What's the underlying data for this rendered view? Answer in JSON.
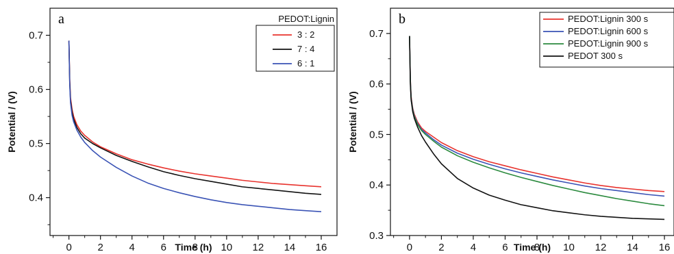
{
  "chart_data": [
    {
      "type": "line",
      "panel_label": "a",
      "xlabel": "Time (h)",
      "ylabel": "Potential / (V)",
      "xlim": [
        -1.2,
        17
      ],
      "ylim": [
        0.33,
        0.75
      ],
      "x_ticks": [
        "0",
        "2",
        "4",
        "6",
        "8",
        "10",
        "12",
        "14",
        "16"
      ],
      "y_ticks": [
        "0.4",
        "0.5",
        "0.6",
        "0.7"
      ],
      "legend_title": "PEDOT:Lignin",
      "legend_position": "top-right",
      "grid": false,
      "series": [
        {
          "name": "3 : 2",
          "color": "#e8322d",
          "points": [
            [
              0,
              0.69
            ],
            [
              0.05,
              0.62
            ],
            [
              0.1,
              0.585
            ],
            [
              0.2,
              0.563
            ],
            [
              0.3,
              0.55
            ],
            [
              0.5,
              0.535
            ],
            [
              0.75,
              0.523
            ],
            [
              1,
              0.515
            ],
            [
              1.5,
              0.503
            ],
            [
              2,
              0.494
            ],
            [
              3,
              0.481
            ],
            [
              4,
              0.47
            ],
            [
              5,
              0.462
            ],
            [
              6,
              0.455
            ],
            [
              7,
              0.449
            ],
            [
              8,
              0.444
            ],
            [
              9,
              0.44
            ],
            [
              10,
              0.436
            ],
            [
              11,
              0.432
            ],
            [
              12,
              0.429
            ],
            [
              13,
              0.426
            ],
            [
              14,
              0.424
            ],
            [
              15,
              0.422
            ],
            [
              16,
              0.42
            ]
          ]
        },
        {
          "name": "7 : 4",
          "color": "#111111",
          "points": [
            [
              0,
              0.69
            ],
            [
              0.05,
              0.615
            ],
            [
              0.1,
              0.58
            ],
            [
              0.2,
              0.558
            ],
            [
              0.3,
              0.545
            ],
            [
              0.5,
              0.53
            ],
            [
              0.75,
              0.518
            ],
            [
              1,
              0.51
            ],
            [
              1.5,
              0.5
            ],
            [
              2,
              0.492
            ],
            [
              3,
              0.478
            ],
            [
              4,
              0.467
            ],
            [
              5,
              0.457
            ],
            [
              6,
              0.448
            ],
            [
              7,
              0.441
            ],
            [
              8,
              0.435
            ],
            [
              9,
              0.43
            ],
            [
              10,
              0.425
            ],
            [
              11,
              0.42
            ],
            [
              12,
              0.417
            ],
            [
              13,
              0.414
            ],
            [
              14,
              0.411
            ],
            [
              15,
              0.408
            ],
            [
              16,
              0.406
            ]
          ]
        },
        {
          "name": "6 : 1",
          "color": "#3a53b5",
          "points": [
            [
              0,
              0.69
            ],
            [
              0.05,
              0.61
            ],
            [
              0.1,
              0.575
            ],
            [
              0.2,
              0.552
            ],
            [
              0.3,
              0.54
            ],
            [
              0.5,
              0.525
            ],
            [
              0.75,
              0.512
            ],
            [
              1,
              0.502
            ],
            [
              1.5,
              0.487
            ],
            [
              2,
              0.475
            ],
            [
              3,
              0.456
            ],
            [
              4,
              0.44
            ],
            [
              5,
              0.427
            ],
            [
              6,
              0.417
            ],
            [
              7,
              0.409
            ],
            [
              8,
              0.402
            ],
            [
              9,
              0.396
            ],
            [
              10,
              0.391
            ],
            [
              11,
              0.387
            ],
            [
              12,
              0.384
            ],
            [
              13,
              0.381
            ],
            [
              14,
              0.378
            ],
            [
              15,
              0.376
            ],
            [
              16,
              0.374
            ]
          ]
        }
      ]
    },
    {
      "type": "line",
      "panel_label": "b",
      "xlabel": "Time (h)",
      "ylabel": "Potential / (V)",
      "xlim": [
        -1.2,
        16.6
      ],
      "ylim": [
        0.3,
        0.75
      ],
      "x_ticks": [
        "0",
        "2",
        "4",
        "6",
        "8",
        "10",
        "12",
        "14",
        "16"
      ],
      "y_ticks": [
        "0.3",
        "0.4",
        "0.5",
        "0.6",
        "0.7"
      ],
      "legend_title": "",
      "legend_position": "top-right",
      "grid": false,
      "series": [
        {
          "name": "PEDOT:Lignin 300 s",
          "color": "#e8322d",
          "points": [
            [
              0,
              0.695
            ],
            [
              0.05,
              0.61
            ],
            [
              0.1,
              0.575
            ],
            [
              0.2,
              0.552
            ],
            [
              0.3,
              0.54
            ],
            [
              0.5,
              0.525
            ],
            [
              0.75,
              0.513
            ],
            [
              1,
              0.506
            ],
            [
              1.5,
              0.495
            ],
            [
              2,
              0.484
            ],
            [
              3,
              0.468
            ],
            [
              4,
              0.456
            ],
            [
              5,
              0.446
            ],
            [
              6,
              0.438
            ],
            [
              7,
              0.43
            ],
            [
              8,
              0.423
            ],
            [
              9,
              0.416
            ],
            [
              10,
              0.41
            ],
            [
              11,
              0.404
            ],
            [
              12,
              0.399
            ],
            [
              13,
              0.395
            ],
            [
              14,
              0.392
            ],
            [
              15,
              0.389
            ],
            [
              16,
              0.387
            ]
          ]
        },
        {
          "name": "PEDOT:Lignin 600 s",
          "color": "#3a53b5",
          "points": [
            [
              0,
              0.695
            ],
            [
              0.05,
              0.608
            ],
            [
              0.1,
              0.572
            ],
            [
              0.2,
              0.55
            ],
            [
              0.3,
              0.537
            ],
            [
              0.5,
              0.522
            ],
            [
              0.75,
              0.51
            ],
            [
              1,
              0.503
            ],
            [
              1.5,
              0.49
            ],
            [
              2,
              0.479
            ],
            [
              3,
              0.463
            ],
            [
              4,
              0.451
            ],
            [
              5,
              0.441
            ],
            [
              6,
              0.432
            ],
            [
              7,
              0.424
            ],
            [
              8,
              0.417
            ],
            [
              9,
              0.41
            ],
            [
              10,
              0.404
            ],
            [
              11,
              0.398
            ],
            [
              12,
              0.393
            ],
            [
              13,
              0.389
            ],
            [
              14,
              0.385
            ],
            [
              15,
              0.381
            ],
            [
              16,
              0.378
            ]
          ]
        },
        {
          "name": "PEDOT:Lignin 900 s",
          "color": "#2b8a3e",
          "points": [
            [
              0,
              0.695
            ],
            [
              0.05,
              0.605
            ],
            [
              0.1,
              0.57
            ],
            [
              0.2,
              0.548
            ],
            [
              0.3,
              0.535
            ],
            [
              0.5,
              0.52
            ],
            [
              0.75,
              0.508
            ],
            [
              1,
              0.5
            ],
            [
              1.5,
              0.487
            ],
            [
              2,
              0.475
            ],
            [
              3,
              0.458
            ],
            [
              4,
              0.445
            ],
            [
              5,
              0.434
            ],
            [
              6,
              0.424
            ],
            [
              7,
              0.415
            ],
            [
              8,
              0.407
            ],
            [
              9,
              0.399
            ],
            [
              10,
              0.392
            ],
            [
              11,
              0.385
            ],
            [
              12,
              0.379
            ],
            [
              13,
              0.373
            ],
            [
              14,
              0.368
            ],
            [
              15,
              0.363
            ],
            [
              16,
              0.359
            ]
          ]
        },
        {
          "name": "PEDOT 300 s",
          "color": "#111111",
          "points": [
            [
              0,
              0.695
            ],
            [
              0.05,
              0.6
            ],
            [
              0.1,
              0.568
            ],
            [
              0.2,
              0.545
            ],
            [
              0.3,
              0.532
            ],
            [
              0.5,
              0.515
            ],
            [
              0.75,
              0.498
            ],
            [
              1,
              0.485
            ],
            [
              1.5,
              0.462
            ],
            [
              2,
              0.442
            ],
            [
              3,
              0.413
            ],
            [
              4,
              0.394
            ],
            [
              5,
              0.38
            ],
            [
              6,
              0.37
            ],
            [
              7,
              0.361
            ],
            [
              8,
              0.355
            ],
            [
              9,
              0.349
            ],
            [
              10,
              0.345
            ],
            [
              11,
              0.341
            ],
            [
              12,
              0.338
            ],
            [
              13,
              0.336
            ],
            [
              14,
              0.334
            ],
            [
              15,
              0.333
            ],
            [
              16,
              0.332
            ]
          ]
        }
      ]
    }
  ]
}
